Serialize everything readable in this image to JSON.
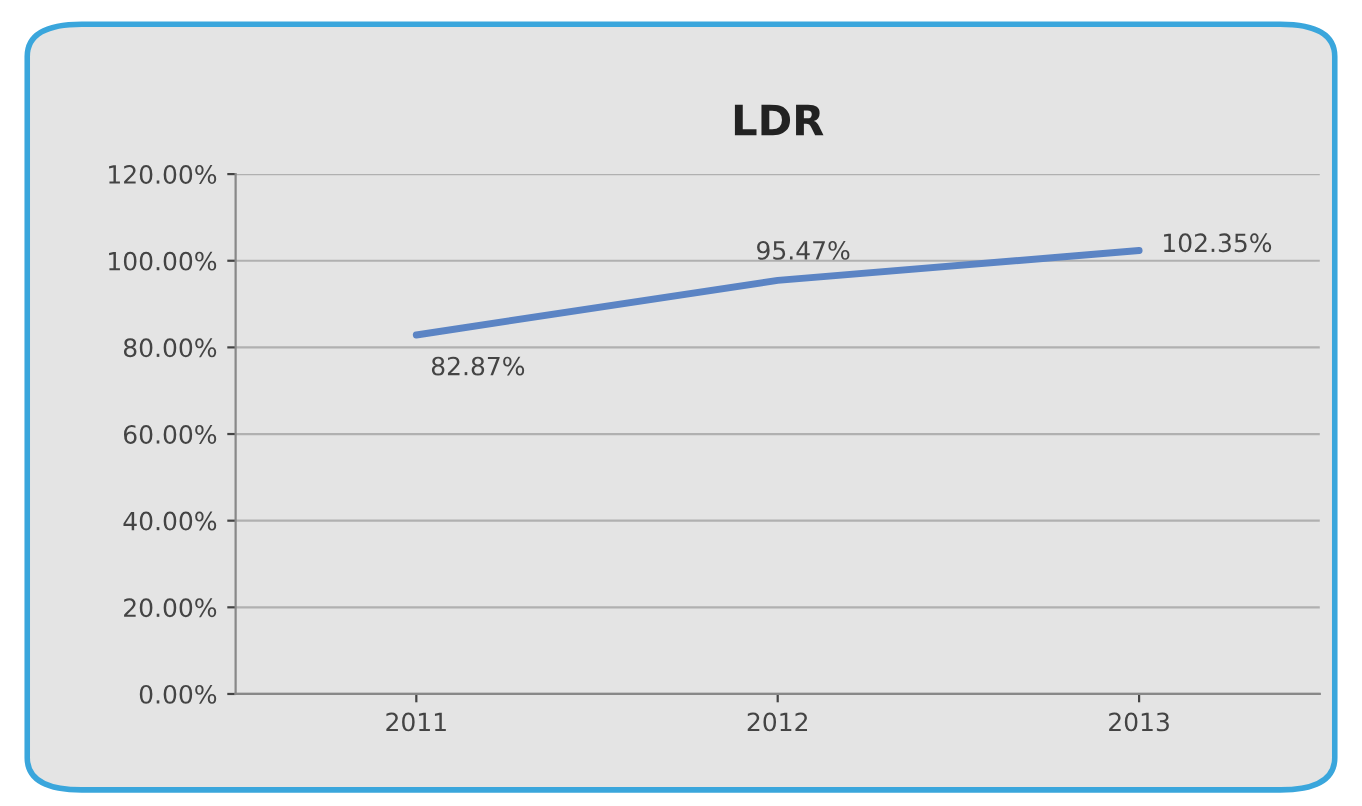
{
  "chart_data": {
    "type": "line",
    "title": "LDR",
    "categories": [
      "2011",
      "2012",
      "2013"
    ],
    "series": [
      {
        "color": "#5b84c4",
        "values": [
          82.87,
          95.47,
          102.35
        ],
        "value_labels": [
          "82.87%",
          "95.47%",
          "102.35%"
        ]
      }
    ],
    "ylim": [
      0,
      120
    ],
    "yticks": [
      {
        "value": 0,
        "label": "0.00%"
      },
      {
        "value": 20,
        "label": "20.00%"
      },
      {
        "value": 40,
        "label": "40.00%"
      },
      {
        "value": 60,
        "label": "60.00%"
      },
      {
        "value": 80,
        "label": "80.00%"
      },
      {
        "value": 100,
        "label": "100.00%"
      },
      {
        "value": 120,
        "label": "120.00%"
      }
    ],
    "grid": "y",
    "marker": "none",
    "line_style": "solid"
  }
}
